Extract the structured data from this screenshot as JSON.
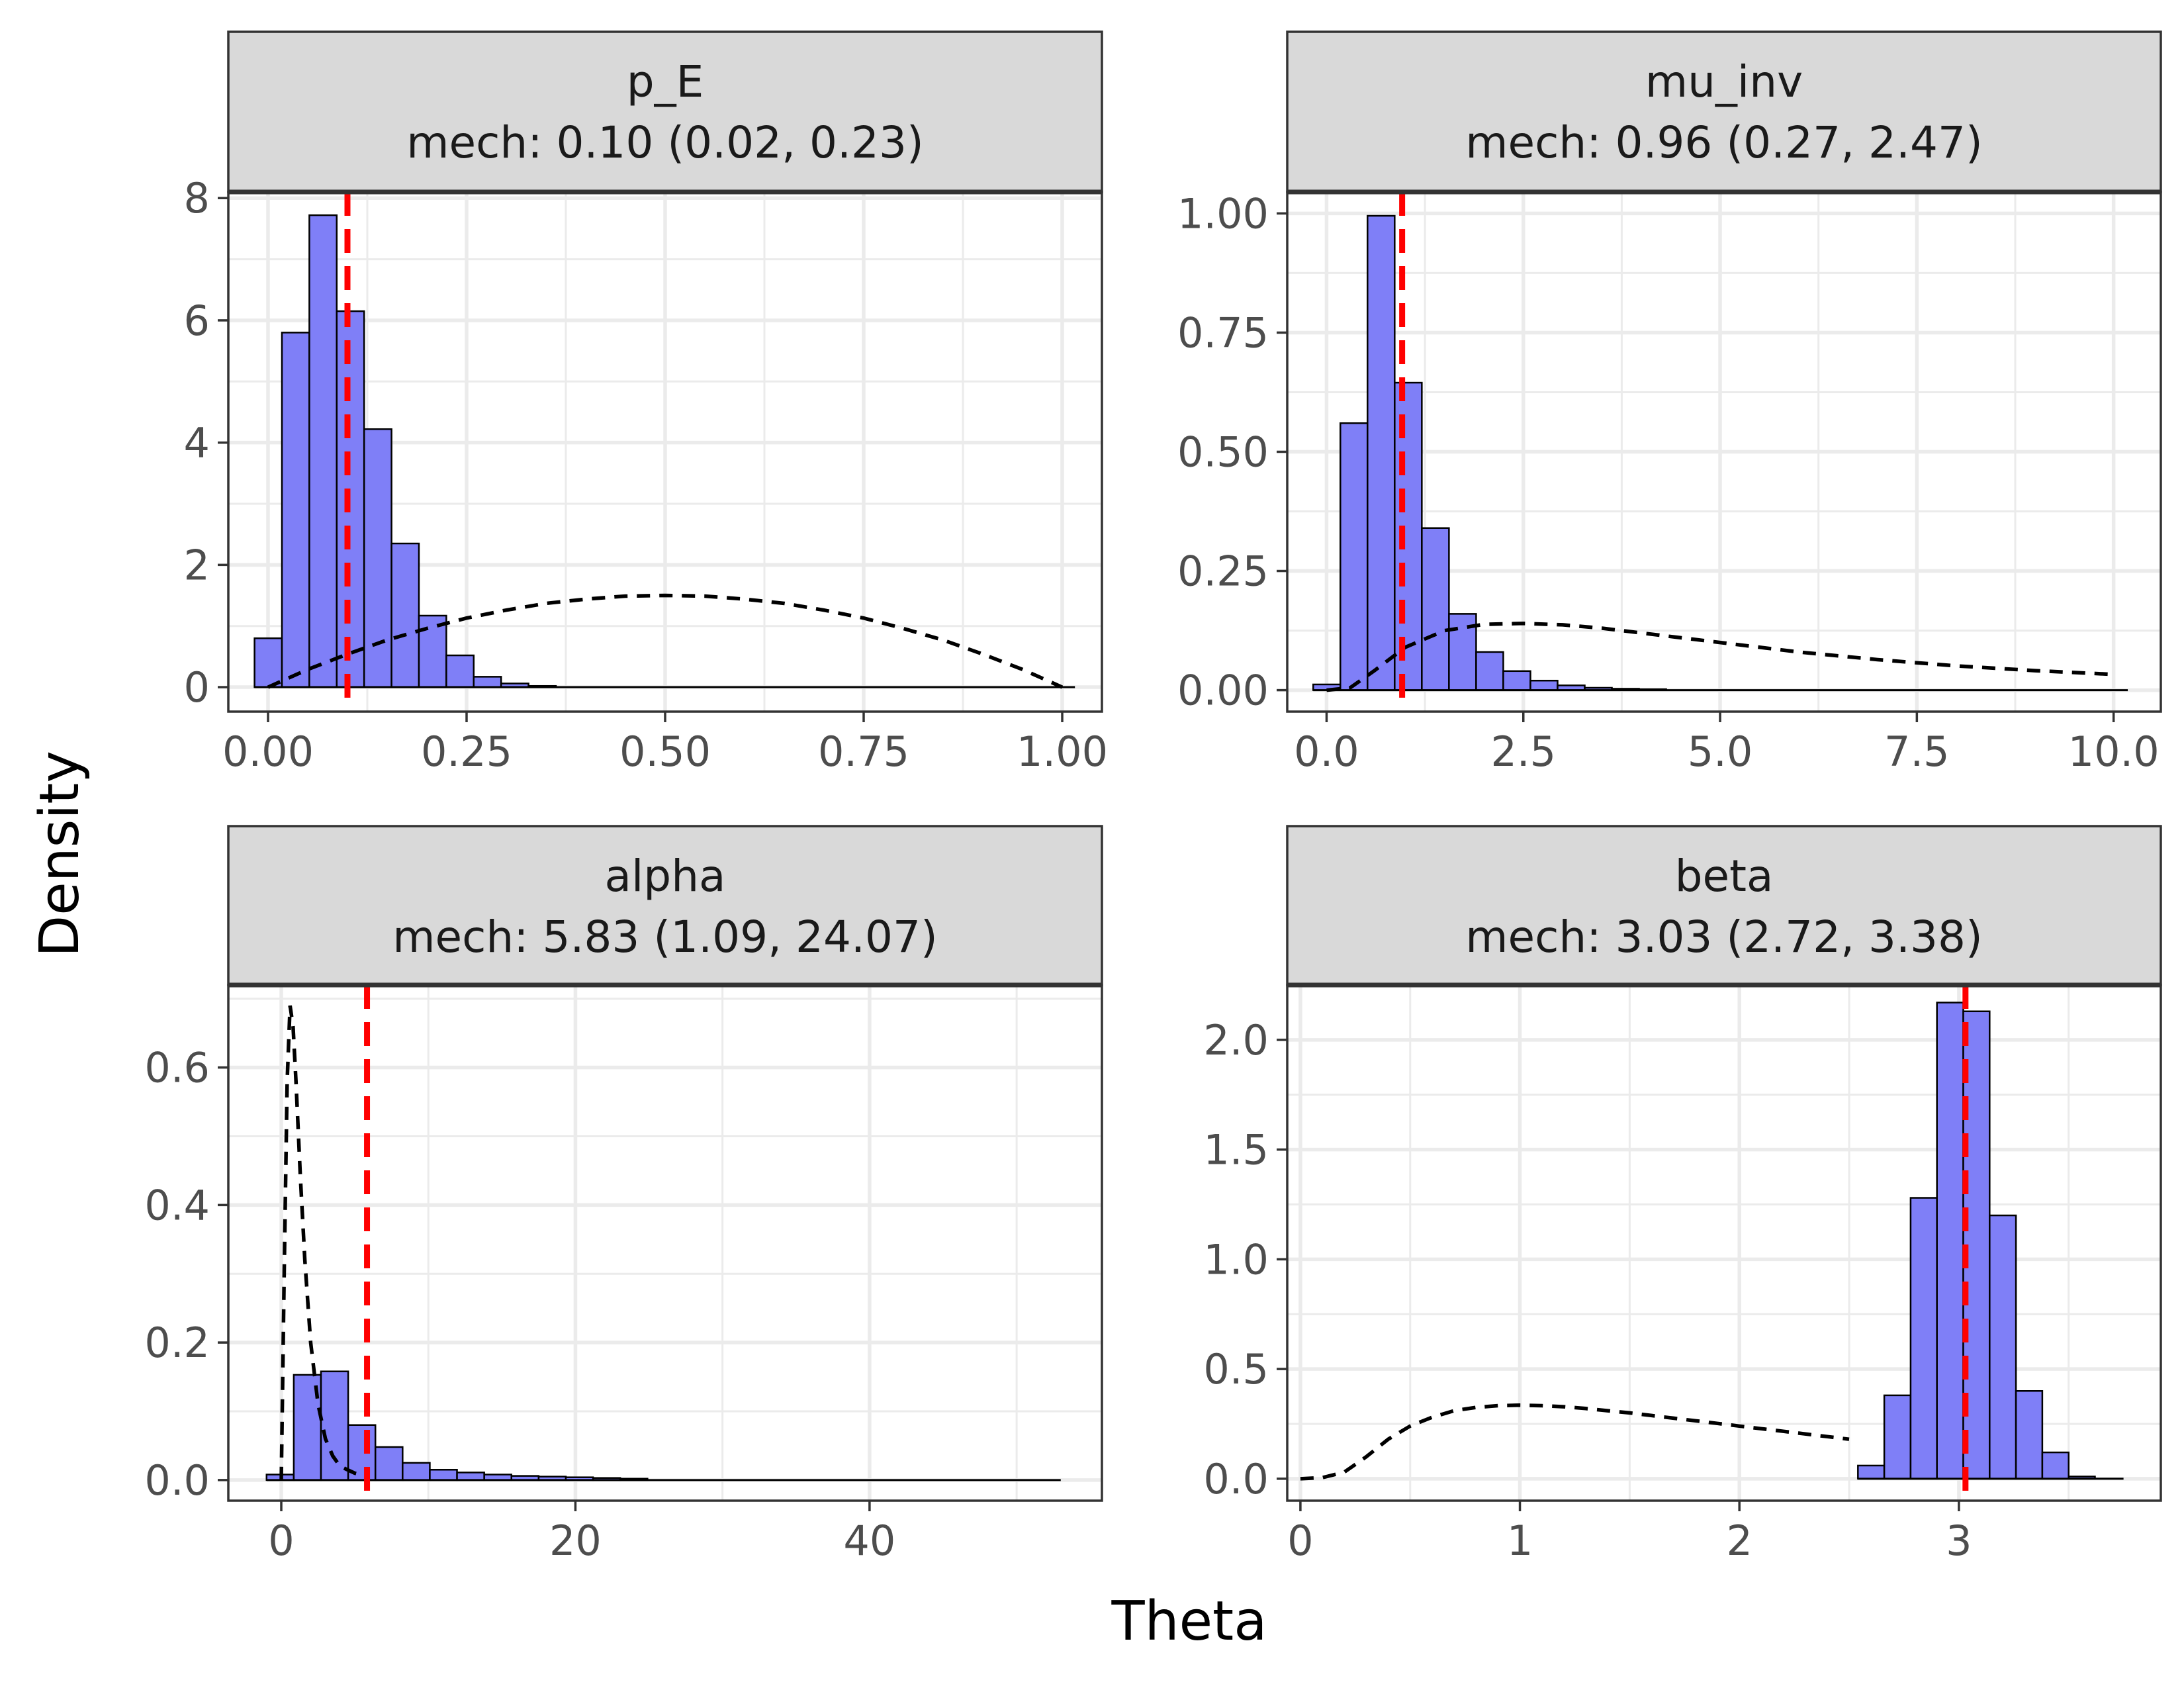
{
  "figure": {
    "xlabel": "Theta",
    "ylabel": "Density",
    "colors": {
      "bar_fill": "#7f7ff7",
      "bar_stroke": "#000000",
      "strip_fill": "#d9d9d9",
      "strip_border": "#333333",
      "grid": "#ebebeb",
      "panel_border": "#333333",
      "tick_text": "#4d4d4d",
      "vline": "#ff0000",
      "prior_line": "#000000"
    }
  },
  "chart_data": [
    {
      "type": "bar",
      "facet": "p_E",
      "strip_title": "p_E",
      "strip_subtitle": "mech: 0.10 (0.02, 0.23)",
      "xlim": [
        -0.05,
        1.05
      ],
      "ylim": [
        -0.4,
        8.1
      ],
      "xticks": [
        0,
        0.25,
        0.5,
        0.75,
        1
      ],
      "xtick_labels": [
        "0.00",
        "0.25",
        "0.50",
        "0.75",
        "1.00"
      ],
      "yticks": [
        0,
        2,
        4,
        6,
        8
      ],
      "ytick_labels": [
        "0",
        "2",
        "4",
        "6",
        "8"
      ],
      "hist_start": -0.017,
      "bin_width": 0.0345,
      "hist_end": 1.016,
      "histogram": [
        0.8,
        5.8,
        7.72,
        6.15,
        4.22,
        2.35,
        1.17,
        0.52,
        0.17,
        0.06,
        0.02
      ],
      "vline": 0.1,
      "prior_curve": {
        "x": [
          0,
          0.05,
          0.1,
          0.15,
          0.2,
          0.25,
          0.3,
          0.35,
          0.4,
          0.45,
          0.5,
          0.55,
          0.6,
          0.65,
          0.7,
          0.75,
          0.8,
          0.85,
          0.9,
          0.95,
          1.0
        ],
        "y": [
          0,
          0.29,
          0.54,
          0.77,
          0.96,
          1.13,
          1.26,
          1.37,
          1.44,
          1.49,
          1.5,
          1.49,
          1.44,
          1.37,
          1.26,
          1.13,
          0.96,
          0.77,
          0.54,
          0.29,
          0
        ]
      }
    },
    {
      "type": "bar",
      "facet": "mu_inv",
      "strip_title": "mu_inv",
      "strip_subtitle": "mech: 0.96 (0.27, 2.47)",
      "xlim": [
        -0.5,
        10.6
      ],
      "ylim": [
        -0.045,
        1.045
      ],
      "xticks": [
        0,
        2.5,
        5,
        7.5,
        10
      ],
      "xtick_labels": [
        "0.0",
        "2.5",
        "5.0",
        "7.5",
        "10.0"
      ],
      "yticks": [
        0,
        0.25,
        0.5,
        0.75,
        1.0
      ],
      "ytick_labels": [
        "0.00",
        "0.25",
        "0.50",
        "0.75",
        "1.00"
      ],
      "hist_start": -0.17,
      "bin_width": 0.345,
      "hist_end": 10.18,
      "histogram": [
        0.012,
        0.56,
        0.995,
        0.645,
        0.34,
        0.16,
        0.08,
        0.04,
        0.02,
        0.01,
        0.005,
        0.003,
        0.002
      ],
      "vline": 0.96,
      "prior_curve": {
        "x": [
          0,
          0.3,
          0.6,
          1.0,
          1.5,
          2.0,
          2.5,
          3.0,
          3.5,
          4.0,
          5.0,
          6.0,
          7.0,
          8.0,
          9.0,
          10.0
        ],
        "y": [
          0,
          0.005,
          0.04,
          0.09,
          0.125,
          0.138,
          0.14,
          0.137,
          0.13,
          0.12,
          0.1,
          0.08,
          0.064,
          0.051,
          0.041,
          0.033
        ]
      }
    },
    {
      "type": "bar",
      "facet": "alpha",
      "strip_title": "alpha",
      "strip_subtitle": "mech: 5.83 (1.09, 24.07)",
      "xlim": [
        -3.6,
        55.8
      ],
      "ylim": [
        -0.03,
        0.72
      ],
      "xticks": [
        0,
        20,
        40
      ],
      "xtick_labels": [
        "0",
        "20",
        "40"
      ],
      "yticks": [
        0,
        0.2,
        0.4,
        0.6
      ],
      "ytick_labels": [
        "0.0",
        "0.2",
        "0.4",
        "0.6"
      ],
      "hist_start": -1.0,
      "bin_width": 1.85,
      "hist_end": 53.0,
      "histogram": [
        0.008,
        0.153,
        0.158,
        0.08,
        0.048,
        0.025,
        0.015,
        0.011,
        0.008,
        0.006,
        0.005,
        0.004,
        0.003,
        0.002
      ],
      "vline": 5.83,
      "prior_curve": {
        "x": [
          0,
          0.2,
          0.4,
          0.6,
          0.8,
          1.0,
          1.3,
          1.6,
          2.0,
          2.5,
          3.0,
          3.5,
          4.0,
          5.0,
          6.0
        ],
        "y": [
          0,
          0.3,
          0.58,
          0.69,
          0.66,
          0.58,
          0.44,
          0.32,
          0.2,
          0.11,
          0.06,
          0.035,
          0.02,
          0.01,
          0.005
        ]
      }
    },
    {
      "type": "bar",
      "facet": "beta",
      "strip_title": "beta",
      "strip_subtitle": "mech: 3.03 (2.72, 3.38)",
      "xlim": [
        -0.06,
        3.92
      ],
      "ylim": [
        -0.1,
        2.25
      ],
      "xticks": [
        0,
        1,
        2,
        3
      ],
      "xtick_labels": [
        "0",
        "1",
        "2",
        "3"
      ],
      "yticks": [
        0,
        0.5,
        1.0,
        1.5,
        2.0
      ],
      "ytick_labels": [
        "0.0",
        "0.5",
        "1.0",
        "1.5",
        "2.0"
      ],
      "hist_start": 2.54,
      "bin_width": 0.12,
      "hist_end": 3.75,
      "histogram": [
        0.06,
        0.38,
        1.28,
        2.17,
        2.13,
        1.2,
        0.4,
        0.12,
        0.01
      ],
      "vline": 3.03,
      "prior_curve": {
        "x": [
          0,
          0.1,
          0.2,
          0.3,
          0.4,
          0.5,
          0.6,
          0.7,
          0.8,
          0.9,
          1.0,
          1.1,
          1.2,
          1.3,
          1.4,
          1.5,
          1.6,
          1.7,
          1.8,
          1.9,
          2.0,
          2.1,
          2.2,
          2.3,
          2.4,
          2.5
        ],
        "y": [
          0,
          0.005,
          0.03,
          0.1,
          0.18,
          0.24,
          0.28,
          0.31,
          0.325,
          0.333,
          0.335,
          0.333,
          0.328,
          0.32,
          0.31,
          0.3,
          0.288,
          0.276,
          0.264,
          0.252,
          0.24,
          0.228,
          0.216,
          0.204,
          0.192,
          0.18
        ]
      }
    }
  ]
}
